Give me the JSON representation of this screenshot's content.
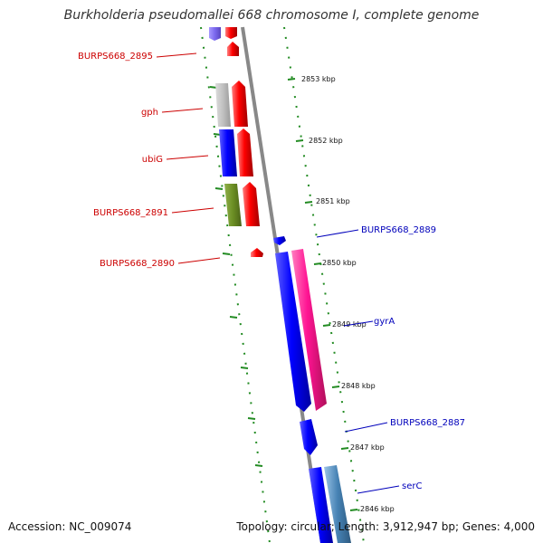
{
  "title": "Burkholderia pseudomallei 668 chromosome I, complete genome",
  "footer": {
    "accession": "Accession: NC_009074",
    "summary": "Topology: circular; Length: 3,912,947 bp; Genes: 4,000"
  },
  "ticks": [
    "2853 kbp",
    "2852 kbp",
    "2851 kbp",
    "2850 kbp",
    "2849 kbp",
    "2848 kbp",
    "2847 kbp",
    "2846 kbp"
  ],
  "genes_left": [
    "BURPS668_2895",
    "gph",
    "ubiG",
    "BURPS668_2891",
    "BURPS668_2890"
  ],
  "genes_right": [
    "BURPS668_2889",
    "gyrA",
    "BURPS668_2887",
    "serC"
  ],
  "colors": {
    "backbone": "#888888",
    "tick_green": "#228b22",
    "label_red": "#cc0000",
    "label_blue": "#0000bb",
    "feature_red": "#ff0000",
    "feature_blue": "#0000ff",
    "feature_pink": "#ff1493",
    "feature_grey": "#c0c0c0",
    "feature_olive": "#6b8e23",
    "feature_purple": "#7b68ee",
    "feature_steel": "#4682b4"
  }
}
